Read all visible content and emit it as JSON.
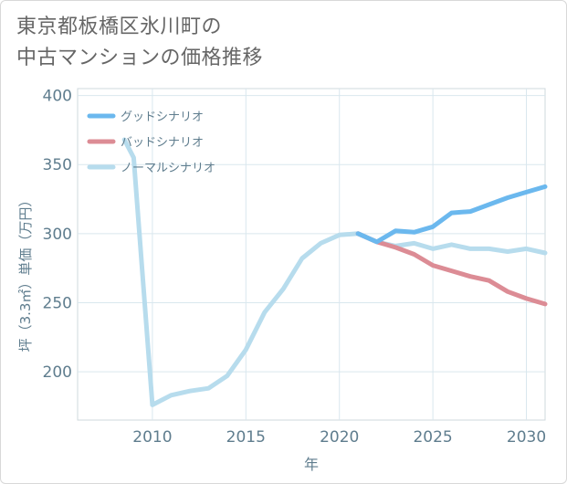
{
  "title": "東京都板橋区氷川町の\n中古マンションの価格推移",
  "chart_data": {
    "type": "line",
    "xlabel": "年",
    "ylabel": "坪（3.3㎡）単価（万円）",
    "xlim": [
      2006,
      2031
    ],
    "ylim": [
      165,
      405
    ],
    "xticks": [
      2010,
      2015,
      2020,
      2025,
      2030
    ],
    "yticks": [
      200,
      250,
      300,
      350,
      400
    ],
    "grid": true,
    "legend_position": "top-left",
    "series": [
      {
        "name": "グッドシナリオ",
        "color": "#6bb8ee",
        "x": [
          2021,
          2022,
          2023,
          2024,
          2025,
          2026,
          2027,
          2028,
          2029,
          2030,
          2031
        ],
        "y": [
          300,
          294,
          302,
          301,
          305,
          315,
          316,
          321,
          326,
          330,
          334
        ]
      },
      {
        "name": "バッドシナリオ",
        "color": "#dc8c95",
        "x": [
          2021,
          2022,
          2023,
          2024,
          2025,
          2026,
          2027,
          2028,
          2029,
          2030,
          2031
        ],
        "y": [
          300,
          294,
          290,
          285,
          277,
          273,
          269,
          266,
          258,
          253,
          249
        ]
      },
      {
        "name": "ノーマルシナリオ",
        "color": "#b7dced",
        "x": [
          2008.5,
          2009,
          2010,
          2011,
          2012,
          2013,
          2014,
          2015,
          2016,
          2017,
          2018,
          2019,
          2020,
          2021,
          2022,
          2023,
          2024,
          2025,
          2026,
          2027,
          2028,
          2029,
          2030,
          2031
        ],
        "y": [
          368,
          355,
          176,
          183,
          186,
          188,
          197,
          216,
          243,
          260,
          282,
          293,
          299,
          300,
          294,
          291,
          293,
          289,
          292,
          289,
          289,
          287,
          289,
          286
        ]
      }
    ]
  }
}
